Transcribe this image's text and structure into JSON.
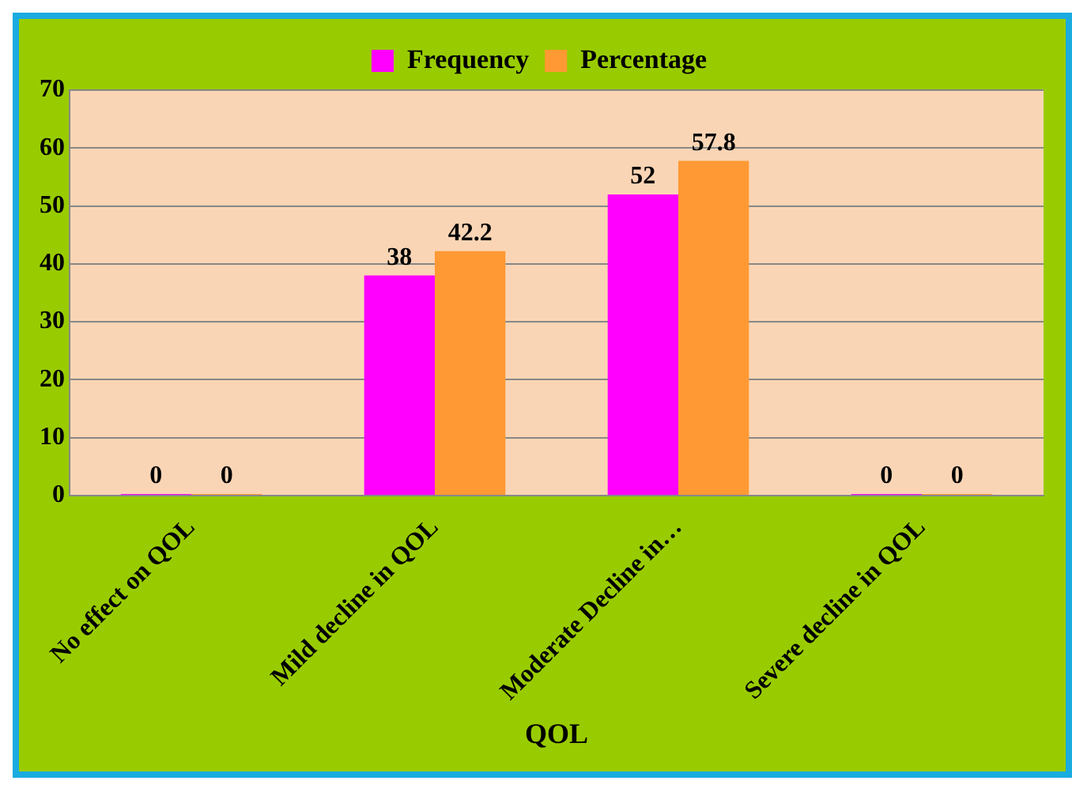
{
  "chart_data": {
    "type": "bar",
    "xlabel": "QOL",
    "categories": [
      "No effect on QOL",
      "Mild decline in QOL",
      "Moderate Decline in…",
      "Severe decline in QOL"
    ],
    "series": [
      {
        "name": "Frequency",
        "color": "#ff00ff",
        "values": [
          0,
          38,
          52,
          0
        ]
      },
      {
        "name": "Percentage",
        "color": "#ff9933",
        "values": [
          0,
          42.2,
          57.8,
          0
        ]
      }
    ],
    "ylim": [
      0,
      70
    ],
    "yticks": [
      0,
      10,
      20,
      30,
      40,
      50,
      60,
      70
    ],
    "grid": "y",
    "legend": "top",
    "data_labels": true
  }
}
